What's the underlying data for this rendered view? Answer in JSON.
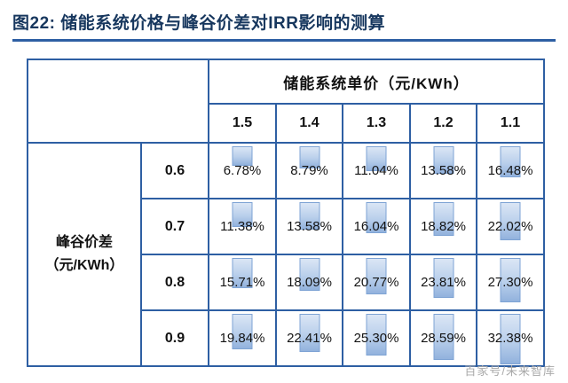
{
  "figure": {
    "title": "图22: 储能系统价格与峰谷价差对IRR影响的测算",
    "title_color": "#17375e",
    "rule_color": "#2e5fa3",
    "watermark": "百家号/未来智库"
  },
  "chart_data": {
    "type": "table",
    "title": "储能系统价格与峰谷价差对IRR影响的测算",
    "column_group_label": "储能系统单价（元/KWh）",
    "row_group_label_line1": "峰谷价差",
    "row_group_label_line2": "（元/KWh）",
    "columns": [
      "1.5",
      "1.4",
      "1.3",
      "1.2",
      "1.1"
    ],
    "rows": [
      {
        "label": "0.6",
        "values": [
          "6.78%",
          "8.79%",
          "11.04%",
          "13.58%",
          "16.48%"
        ]
      },
      {
        "label": "0.7",
        "values": [
          "11.38%",
          "13.58%",
          "16.04%",
          "18.82%",
          "22.02%"
        ]
      },
      {
        "label": "0.8",
        "values": [
          "15.71%",
          "18.09%",
          "20.77%",
          "23.81%",
          "27.30%"
        ]
      },
      {
        "label": "0.9",
        "values": [
          "19.84%",
          "22.41%",
          "25.30%",
          "28.59%",
          "32.38%"
        ]
      }
    ],
    "bar_style": "vertical blue gradient data bars, height proportional to IRR value",
    "accent_color": "#2e5fa3",
    "bar_fill": "#b9cfeb",
    "bar_border": "#7ea3d4"
  }
}
